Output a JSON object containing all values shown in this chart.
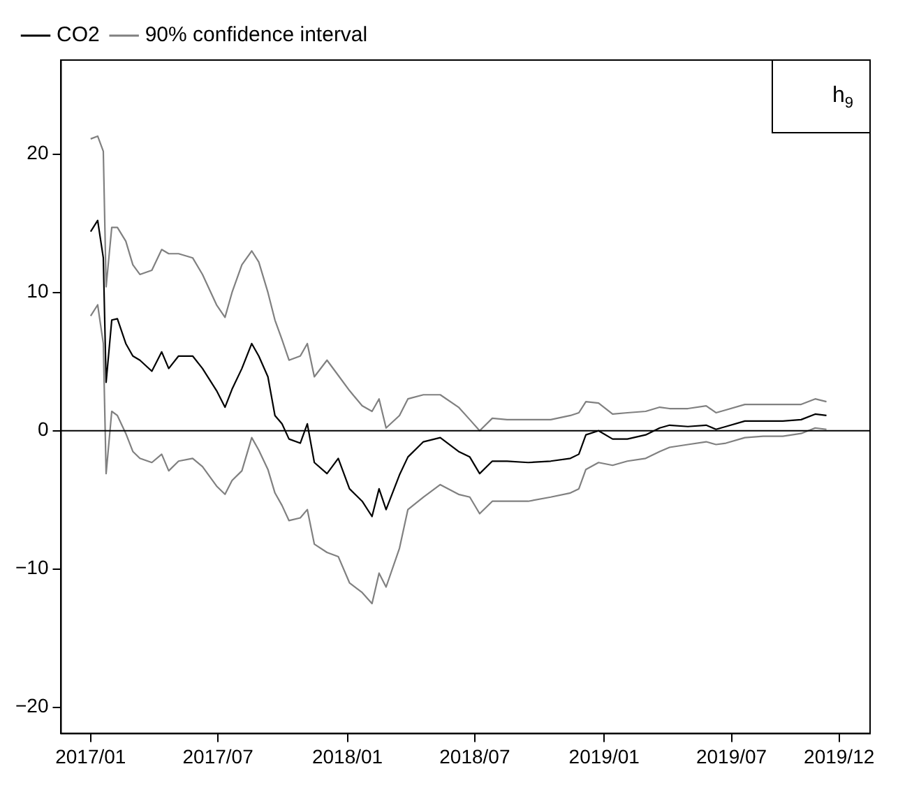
{
  "chart_data": {
    "type": "line",
    "x": [
      "2017-01-01",
      "2017-01-11",
      "2017-01-19",
      "2017-01-23",
      "2017-01-31",
      "2017-02-08",
      "2017-02-20",
      "2017-03-02",
      "2017-03-12",
      "2017-03-29",
      "2017-04-12",
      "2017-04-22",
      "2017-05-06",
      "2017-05-26",
      "2017-06-09",
      "2017-06-29",
      "2017-07-11",
      "2017-07-21",
      "2017-08-04",
      "2017-08-18",
      "2017-08-28",
      "2017-09-10",
      "2017-09-20",
      "2017-09-30",
      "2017-10-10",
      "2017-10-26",
      "2017-11-05",
      "2017-11-15",
      "2017-12-03",
      "2017-12-19",
      "2018-01-04",
      "2018-01-22",
      "2018-02-05",
      "2018-02-15",
      "2018-02-25",
      "2018-03-16",
      "2018-03-28",
      "2018-04-19",
      "2018-05-13",
      "2018-06-08",
      "2018-06-24",
      "2018-07-08",
      "2018-07-26",
      "2018-08-16",
      "2018-09-15",
      "2018-10-17",
      "2018-11-14",
      "2018-11-26",
      "2018-12-06",
      "2018-12-24",
      "2019-01-13",
      "2019-02-03",
      "2019-03-01",
      "2019-03-21",
      "2019-04-04",
      "2019-04-30",
      "2019-05-26",
      "2019-06-09",
      "2019-06-23",
      "2019-07-20",
      "2019-08-15",
      "2019-09-12",
      "2019-10-08",
      "2019-10-28",
      "2019-11-13"
    ],
    "series": [
      {
        "name": "CO2",
        "color": "#000000",
        "values": [
          14.4,
          15.2,
          12.5,
          3.5,
          8.0,
          8.1,
          6.3,
          5.4,
          5.1,
          4.3,
          5.7,
          4.5,
          5.4,
          5.4,
          4.5,
          2.9,
          1.7,
          3.0,
          4.5,
          6.3,
          5.4,
          3.9,
          1.1,
          0.5,
          -0.6,
          -0.9,
          0.5,
          -2.3,
          -3.1,
          -2.0,
          -4.2,
          -5.1,
          -6.2,
          -4.2,
          -5.7,
          -3.2,
          -1.9,
          -0.8,
          -0.5,
          -1.5,
          -1.9,
          -3.1,
          -2.2,
          -2.2,
          -2.3,
          -2.2,
          -2.0,
          -1.7,
          -0.3,
          0.0,
          -0.6,
          -0.6,
          -0.3,
          0.2,
          0.4,
          0.3,
          0.4,
          0.1,
          0.3,
          0.7,
          0.7,
          0.7,
          0.8,
          1.2,
          1.1
        ]
      },
      {
        "name": "90% confidence interval",
        "color": "#808080",
        "values": [
          21.1,
          21.3,
          20.2,
          10.4,
          14.7,
          14.7,
          13.7,
          12.0,
          11.3,
          11.6,
          13.1,
          12.8,
          12.8,
          12.5,
          11.3,
          9.1,
          8.2,
          10.0,
          12.0,
          13.0,
          12.2,
          10.0,
          8.0,
          6.6,
          5.1,
          5.4,
          6.3,
          3.9,
          5.1,
          4.0,
          2.9,
          1.8,
          1.4,
          2.3,
          0.2,
          1.1,
          2.3,
          2.6,
          2.6,
          1.7,
          0.8,
          0.0,
          0.9,
          0.8,
          0.8,
          0.8,
          1.1,
          1.3,
          2.1,
          2.0,
          1.2,
          1.3,
          1.4,
          1.7,
          1.6,
          1.6,
          1.8,
          1.3,
          1.5,
          1.9,
          1.9,
          1.9,
          1.9,
          2.3,
          2.1
        ]
      },
      {
        "color": "#808080",
        "values": [
          8.3,
          9.1,
          6.3,
          -3.1,
          1.4,
          1.1,
          -0.2,
          -1.5,
          -2.0,
          -2.3,
          -1.7,
          -2.9,
          -2.2,
          -2.0,
          -2.6,
          -4.0,
          -4.6,
          -3.6,
          -2.9,
          -0.5,
          -1.4,
          -2.8,
          -4.5,
          -5.4,
          -6.5,
          -6.3,
          -5.7,
          -8.2,
          -8.8,
          -9.1,
          -11.0,
          -11.7,
          -12.5,
          -10.3,
          -11.3,
          -8.5,
          -5.7,
          -4.8,
          -3.9,
          -4.6,
          -4.8,
          -6.0,
          -5.1,
          -5.1,
          -5.1,
          -4.8,
          -4.5,
          -4.2,
          -2.8,
          -2.3,
          -2.5,
          -2.2,
          -2.0,
          -1.5,
          -1.2,
          -1.0,
          -0.8,
          -1.0,
          -0.9,
          -0.5,
          -0.4,
          -0.4,
          -0.2,
          0.2,
          0.1
        ]
      }
    ],
    "xlim": [
      "2016-11-20",
      "2020-01-14"
    ],
    "xticks": [
      {
        "value": "2017-01",
        "label": "2017/01"
      },
      {
        "value": "2017-07",
        "label": "2017/07"
      },
      {
        "value": "2018-01",
        "label": "2018/01"
      },
      {
        "value": "2018-07",
        "label": "2018/07"
      },
      {
        "value": "2019-01",
        "label": "2019/01"
      },
      {
        "value": "2019-07",
        "label": "2019/07"
      },
      {
        "value": "2019-12",
        "label": "2019/12"
      }
    ],
    "ylim": [
      -21.9,
      26.8
    ],
    "yticks": [
      {
        "value": -20,
        "label": "−20"
      },
      {
        "value": -10,
        "label": "−10"
      },
      0,
      10,
      20
    ],
    "ref_lines": [
      {
        "axis": "y",
        "value": 0,
        "color": "#000000"
      }
    ],
    "annotations": [
      "h$_{9}$"
    ],
    "legend": "top left",
    "grid": false,
    "line_style": "solid",
    "marker": "none"
  }
}
